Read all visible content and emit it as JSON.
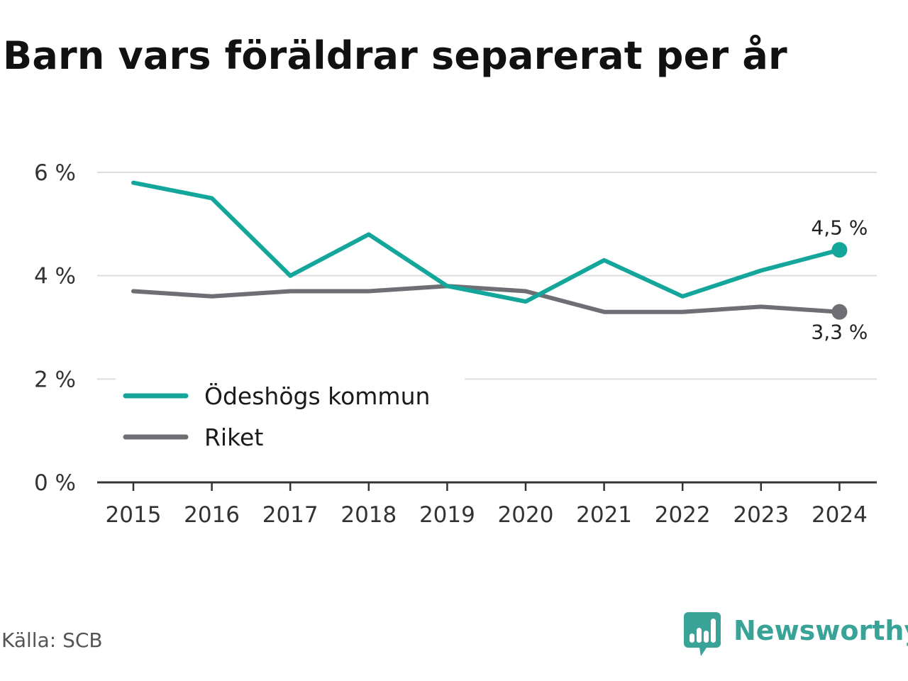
{
  "title": "Barn vars föräldrar separerat per år",
  "source": "Källa: SCB",
  "brand": {
    "name": "Newsworthy",
    "icon": "newsworthy-logo-icon",
    "color": "#3aa398"
  },
  "chart_data": {
    "type": "line",
    "title": "Barn vars föräldrar separerat per år",
    "x": [
      "2015",
      "2016",
      "2017",
      "2018",
      "2019",
      "2020",
      "2021",
      "2022",
      "2023",
      "2024"
    ],
    "ylim": [
      0,
      6
    ],
    "yticks": [
      0,
      2,
      4,
      6
    ],
    "ytick_labels": [
      "0 %",
      "2 %",
      "4 %",
      "6 %"
    ],
    "grid": true,
    "legend_position": "bottom-left",
    "series": [
      {
        "name": "Ödeshögs kommun",
        "color": "#14a69a",
        "values": [
          5.8,
          5.5,
          4.0,
          4.8,
          3.8,
          3.5,
          4.3,
          3.6,
          4.1,
          4.5
        ],
        "end_label": "4,5 %"
      },
      {
        "name": "Riket",
        "color": "#6e6e75",
        "values": [
          3.7,
          3.6,
          3.7,
          3.7,
          3.8,
          3.7,
          3.3,
          3.3,
          3.4,
          3.3
        ],
        "end_label": "3,3 %"
      }
    ]
  }
}
